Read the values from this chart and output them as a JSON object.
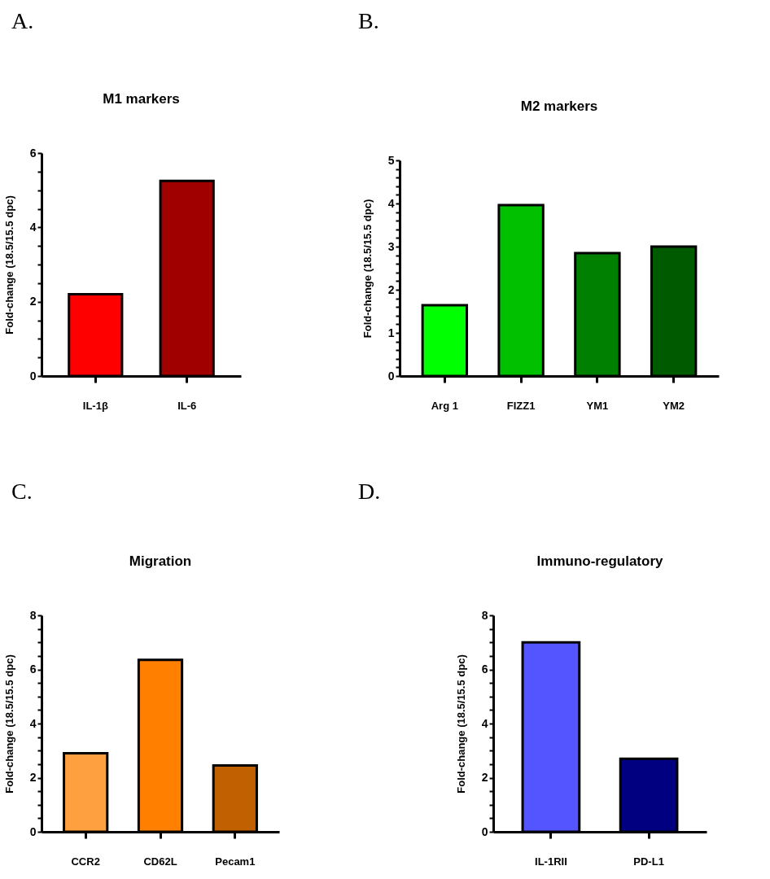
{
  "chart_data": [
    {
      "type": "bar",
      "title": "M1 markers",
      "ylabel": "Fold-change (18.5/15.5 dpc)",
      "annotations": [
        "A."
      ],
      "categories": [
        "IL-1β",
        "IL-6"
      ],
      "values": [
        2.2,
        5.25
      ],
      "colors": [
        "#ff0000",
        "#a00000"
      ],
      "ylim": [
        0,
        6
      ],
      "yticks": [
        0,
        {
          "value": 0.5,
          "label": null
        },
        {
          "value": 1,
          "label": null
        },
        {
          "value": 1.5,
          "label": null
        },
        2,
        {
          "value": 2.5,
          "label": null
        },
        {
          "value": 3,
          "label": null
        },
        {
          "value": 3.5,
          "label": null
        },
        4,
        {
          "value": 4.5,
          "label": null
        },
        {
          "value": 5,
          "label": null
        },
        {
          "value": 5.5,
          "label": null
        },
        6
      ]
    },
    {
      "type": "bar",
      "title": "M2 markers",
      "ylabel": "Fold-change (18.5/15.5 dpc)",
      "annotations": [
        "B."
      ],
      "categories": [
        "Arg 1",
        "FIZZ1",
        "YM1",
        "YM2"
      ],
      "values": [
        1.64,
        3.96,
        2.85,
        3.0
      ],
      "colors": [
        "#00ff00",
        "#00c000",
        "#008000",
        "#005a00"
      ],
      "ylim": [
        0,
        5
      ],
      "yticks": [
        0,
        {
          "value": 0.2,
          "label": null
        },
        {
          "value": 0.4,
          "label": null
        },
        {
          "value": 0.6,
          "label": null
        },
        {
          "value": 0.8,
          "label": null
        },
        1,
        {
          "value": 1.2,
          "label": null
        },
        {
          "value": 1.4,
          "label": null
        },
        {
          "value": 1.6,
          "label": null
        },
        {
          "value": 1.8,
          "label": null
        },
        2,
        {
          "value": 2.2,
          "label": null
        },
        {
          "value": 2.4,
          "label": null
        },
        {
          "value": 2.6,
          "label": null
        },
        {
          "value": 2.8,
          "label": null
        },
        3,
        {
          "value": 3.2,
          "label": null
        },
        {
          "value": 3.4,
          "label": null
        },
        {
          "value": 3.6,
          "label": null
        },
        {
          "value": 3.8,
          "label": null
        },
        4,
        {
          "value": 4.2,
          "label": null
        },
        {
          "value": 4.4,
          "label": null
        },
        {
          "value": 4.6,
          "label": null
        },
        {
          "value": 4.8,
          "label": null
        },
        5
      ]
    },
    {
      "type": "bar",
      "title": "Migration",
      "ylabel": "Fold-change (18.5/15.5 dpc)",
      "annotations": [
        "C."
      ],
      "categories": [
        "CCR2",
        "CD62L",
        "Pecam1"
      ],
      "values": [
        2.9,
        6.35,
        2.45
      ],
      "colors": [
        "#ffa040",
        "#ff8000",
        "#c06000"
      ],
      "ylim": [
        0,
        8
      ],
      "yticks": [
        0,
        {
          "value": 0.5,
          "label": null
        },
        {
          "value": 1,
          "label": null
        },
        {
          "value": 1.5,
          "label": null
        },
        2,
        {
          "value": 2.5,
          "label": null
        },
        {
          "value": 3,
          "label": null
        },
        {
          "value": 3.5,
          "label": null
        },
        4,
        {
          "value": 4.5,
          "label": null
        },
        {
          "value": 5,
          "label": null
        },
        {
          "value": 5.5,
          "label": null
        },
        6,
        {
          "value": 6.5,
          "label": null
        },
        {
          "value": 7,
          "label": null
        },
        {
          "value": 7.5,
          "label": null
        },
        8
      ]
    },
    {
      "type": "bar",
      "title": "Immuno-regulatory",
      "ylabel": "Fold-change (18.5/15.5 dpc)",
      "annotations": [
        "D."
      ],
      "categories": [
        "IL-1RII",
        "PD-L1"
      ],
      "values": [
        7.0,
        2.7
      ],
      "colors": [
        "#5555ff",
        "#000080"
      ],
      "ylim": [
        0,
        8
      ],
      "yticks": [
        0,
        {
          "value": 0.5,
          "label": null
        },
        {
          "value": 1,
          "label": null
        },
        {
          "value": 1.5,
          "label": null
        },
        2,
        {
          "value": 2.5,
          "label": null
        },
        {
          "value": 3,
          "label": null
        },
        {
          "value": 3.5,
          "label": null
        },
        4,
        {
          "value": 4.5,
          "label": null
        },
        {
          "value": 5,
          "label": null
        },
        {
          "value": 5.5,
          "label": null
        },
        6,
        {
          "value": 6.5,
          "label": null
        },
        {
          "value": 7,
          "label": null
        },
        {
          "value": 7.5,
          "label": null
        },
        8
      ]
    }
  ]
}
